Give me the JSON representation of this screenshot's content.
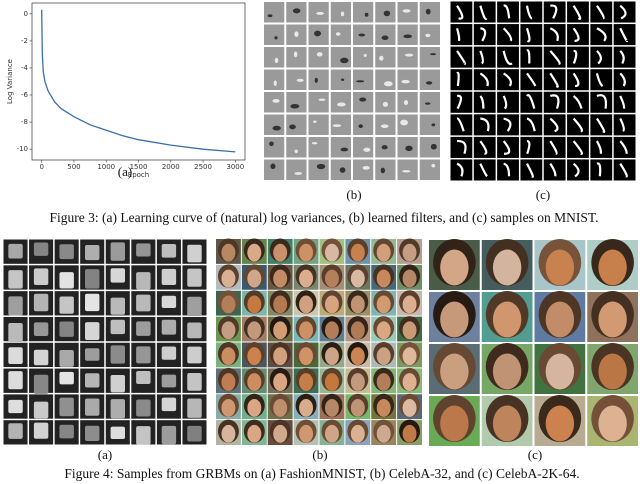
{
  "chart_data": {
    "type": "line",
    "xlabel": "Epoch",
    "ylabel": "Log Variance",
    "x": [
      0,
      10,
      25,
      50,
      100,
      200,
      300,
      500,
      750,
      1000,
      1250,
      1500,
      2000,
      2500,
      3000
    ],
    "series": [
      {
        "color": "#3b6fa8",
        "values": [
          0.3,
          -3.0,
          -4.3,
          -5.0,
          -5.7,
          -6.5,
          -7.0,
          -7.6,
          -8.2,
          -8.6,
          -9.0,
          -9.3,
          -9.7,
          -10.0,
          -10.2
        ]
      }
    ],
    "xlim": [
      -150,
      3150
    ],
    "ylim": [
      -10.8,
      0.8
    ],
    "xticks": [
      0,
      500,
      1000,
      1500,
      2000,
      2500,
      3000
    ],
    "yticks": [
      0,
      -2,
      -4,
      -6,
      -8,
      -10
    ]
  },
  "figure3": {
    "panel_labels": [
      "(a)",
      "(b)",
      "(c)"
    ],
    "caption": "Figure 3: (a) Learning curve of (natural) log variances, (b) learned filters, and (c) samples on MNIST."
  },
  "figure4": {
    "panel_labels": [
      "(a)",
      "(b)",
      "(c)"
    ],
    "caption": "Figure 4: Samples from GRBMs on (a) FashionMNIST, (b) CelebA-32, and (c) CelebA-2K-64."
  }
}
